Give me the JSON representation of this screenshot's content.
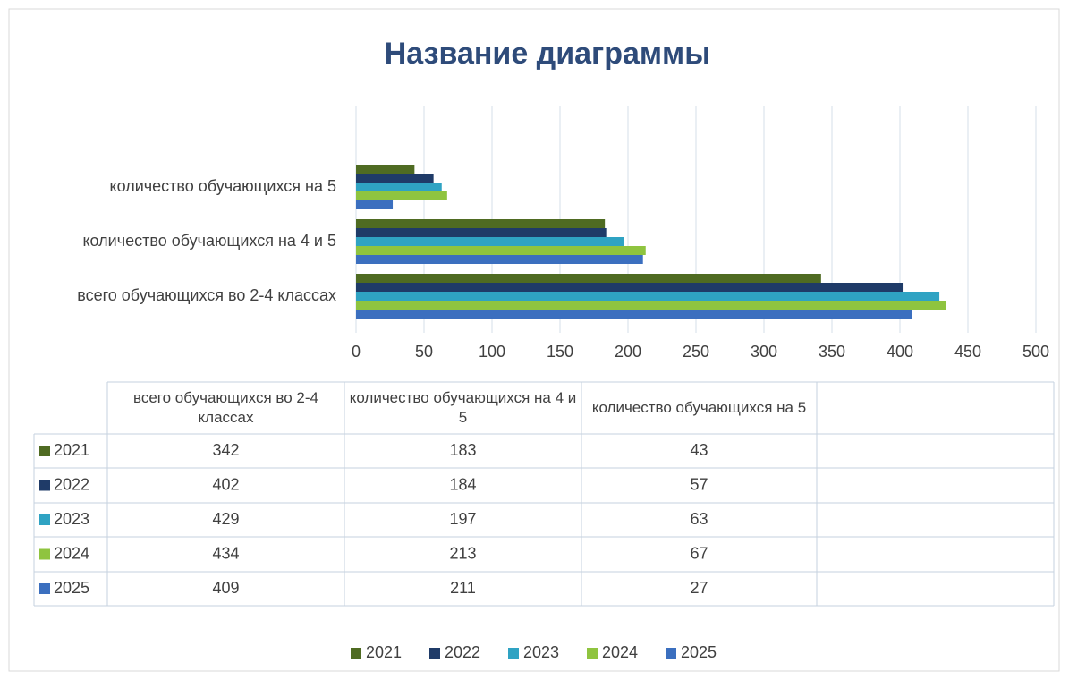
{
  "chart_data": {
    "type": "bar",
    "orientation": "horizontal",
    "title": "Название диаграммы",
    "categories": [
      "всего обучающихся во 2-4 классах",
      "количество обучающихся на 4 и 5",
      "количество обучающихся на 5"
    ],
    "series": [
      {
        "name": "2021",
        "color": "#4f6b22",
        "values": [
          342,
          183,
          43
        ]
      },
      {
        "name": "2022",
        "color": "#1f3b68",
        "values": [
          402,
          184,
          57
        ]
      },
      {
        "name": "2023",
        "color": "#2fa3c3",
        "values": [
          429,
          197,
          63
        ]
      },
      {
        "name": "2024",
        "color": "#8fc43f",
        "values": [
          434,
          213,
          67
        ]
      },
      {
        "name": "2025",
        "color": "#3b6fbf",
        "values": [
          409,
          211,
          27
        ]
      }
    ],
    "xlim": [
      0,
      500
    ],
    "xticks": [
      0,
      50,
      100,
      150,
      200,
      250,
      300,
      350,
      400,
      450,
      500
    ],
    "grid": true,
    "legend": "bottom",
    "data_table": true
  }
}
